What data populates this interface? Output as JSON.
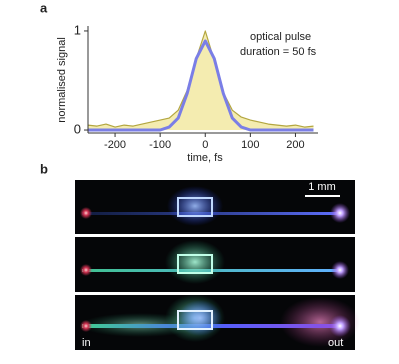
{
  "chart_data": {
    "type": "line",
    "panel_label": "a",
    "ylabel": "normalised signal",
    "xlabel": "time, fs",
    "annotations": [
      "optical pulse",
      "duration = 50 fs"
    ],
    "x": [
      -260,
      -240,
      -220,
      -200,
      -180,
      -160,
      -140,
      -120,
      -100,
      -80,
      -60,
      -40,
      -20,
      0,
      20,
      40,
      60,
      80,
      100,
      120,
      140,
      160,
      180,
      200,
      220,
      240
    ],
    "series": [
      {
        "color": "#b3a640",
        "fill": "#f4ecb0",
        "values": [
          0.05,
          0.04,
          0.06,
          0.03,
          0.05,
          0.04,
          0.06,
          0.08,
          0.1,
          0.12,
          0.2,
          0.4,
          0.72,
          1.0,
          0.7,
          0.38,
          0.2,
          0.13,
          0.1,
          0.08,
          0.06,
          0.05,
          0.04,
          0.05,
          0.03,
          0.04
        ]
      },
      {
        "color": "#7a7ee6",
        "values": [
          0,
          0,
          0,
          0,
          0,
          0,
          0,
          0,
          0,
          0.03,
          0.12,
          0.37,
          0.72,
          0.9,
          0.72,
          0.37,
          0.12,
          0.03,
          0,
          0,
          0,
          0,
          0,
          0,
          0,
          0
        ]
      }
    ],
    "xlim": [
      -260,
      250
    ],
    "ylim": [
      -0.03,
      1.05
    ],
    "xticks": [
      -200,
      -100,
      0,
      100,
      200
    ],
    "yticks": [
      0,
      1
    ]
  },
  "panel_b": {
    "label": "b",
    "scale_bar": "1 mm",
    "input_label": "in",
    "output_label": "out"
  }
}
